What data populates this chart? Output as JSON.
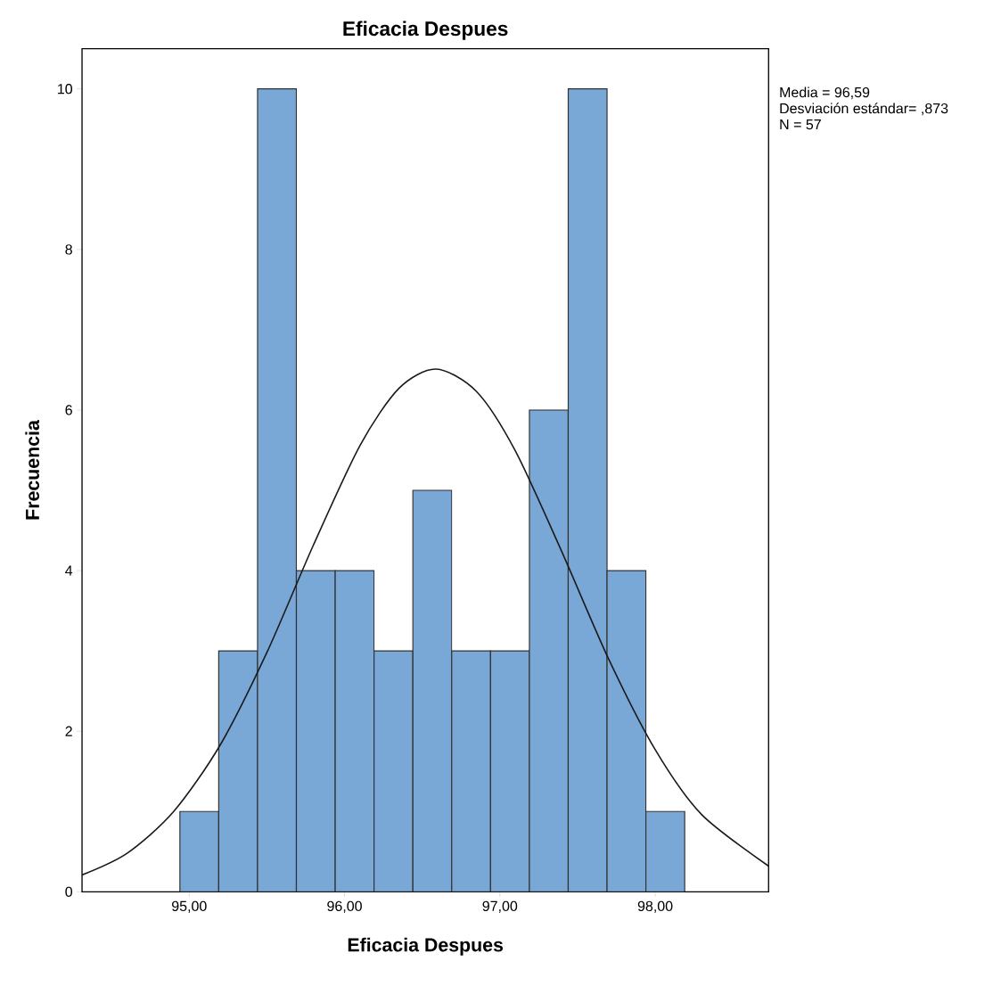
{
  "chart_data": {
    "type": "histogram",
    "title": "Eficacia Despues",
    "xlabel": "Eficacia Despues",
    "ylabel": "Frecuencia",
    "bins": [
      94.94,
      95.19,
      95.44,
      95.69,
      95.94,
      96.19,
      96.44,
      96.69,
      96.94,
      97.19,
      97.44,
      97.69,
      97.94,
      98.19
    ],
    "values": [
      1,
      3,
      10,
      4,
      4,
      3,
      5,
      3,
      3,
      6,
      10,
      4,
      1
    ],
    "color": "#79a7d6",
    "series": [
      {
        "type": "line",
        "color": "#1a1a1a",
        "x": [
          94.31,
          94.6,
          94.9,
          95.2,
          95.5,
          95.8,
          96.1,
          96.35,
          96.59,
          96.85,
          97.1,
          97.4,
          97.7,
          98.0,
          98.3,
          98.73
        ],
        "values": [
          0.21,
          0.48,
          1.0,
          1.83,
          2.98,
          4.32,
          5.56,
          6.27,
          6.51,
          6.23,
          5.49,
          4.23,
          2.9,
          1.77,
          0.96,
          0.32
        ]
      }
    ],
    "xlim": [
      94.31,
      98.73
    ],
    "ylim": [
      0,
      10.5
    ],
    "xticks": [
      {
        "value": 95,
        "label": "95,00"
      },
      {
        "value": 96,
        "label": "96,00"
      },
      {
        "value": 97,
        "label": "97,00"
      },
      {
        "value": 98,
        "label": "98,00"
      }
    ],
    "yticks": [
      0,
      2,
      4,
      6,
      8,
      10
    ],
    "annotations": [
      "Media = 96,59",
      "Desviación estándar= ,873",
      "N = 57"
    ]
  }
}
